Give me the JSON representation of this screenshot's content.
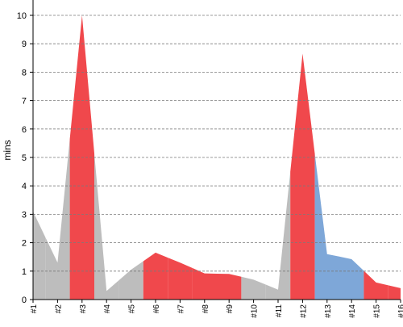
{
  "chart_data": {
    "type": "area",
    "ylabel": "mins",
    "xlabel": "",
    "ylim": [
      0,
      10
    ],
    "yticks": [
      0,
      1,
      2,
      3,
      4,
      5,
      6,
      7,
      8,
      9,
      10
    ],
    "categories": [
      "#1",
      "#2",
      "#3",
      "#4",
      "#5",
      "#6",
      "#7",
      "#8",
      "#9",
      "#10",
      "#11",
      "#12",
      "#13",
      "#14",
      "#15",
      "#16"
    ],
    "values": [
      3.1,
      1.3,
      10.0,
      0.3,
      1.05,
      1.65,
      1.3,
      0.92,
      0.9,
      0.7,
      0.35,
      8.65,
      1.6,
      1.42,
      0.6,
      0.4
    ],
    "segment_colors": [
      "gray",
      "gray",
      "red",
      "gray",
      "gray",
      "red",
      "red",
      "red",
      "red",
      "gray",
      "gray",
      "red",
      "blue",
      "blue",
      "red",
      "red"
    ],
    "colors": {
      "gray": "#bdbdbd",
      "red": "#f0484c",
      "blue": "#7ea7d8"
    },
    "grid": true
  }
}
